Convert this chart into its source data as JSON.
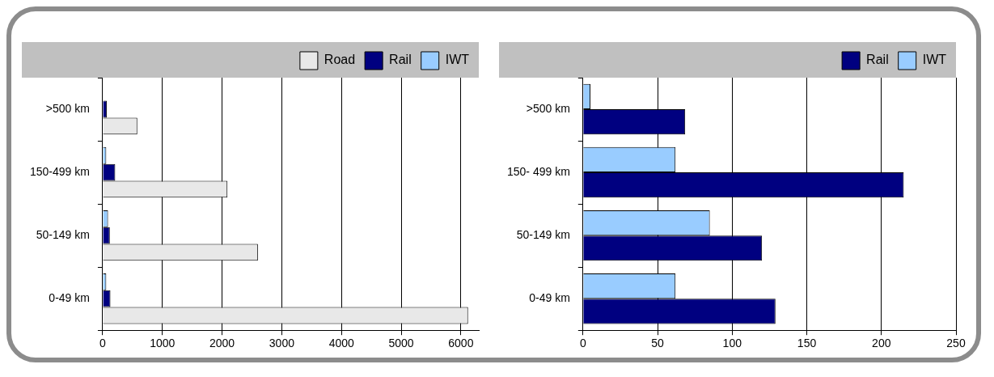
{
  "chart_data": [
    {
      "type": "bar",
      "orientation": "horizontal",
      "categories": [
        ">500 km",
        "150-499 km",
        "50-149 km",
        "0-49 km"
      ],
      "series": [
        {
          "name": "Road",
          "color": "#e8e8e8",
          "values": [
            580,
            2090,
            2600,
            6120
          ]
        },
        {
          "name": "Rail",
          "color": "#000080",
          "values": [
            70,
            210,
            120,
            130
          ]
        },
        {
          "name": "IWT",
          "color": "#99ccff",
          "values": [
            0,
            60,
            90,
            60
          ]
        }
      ],
      "xlim": [
        0,
        6300
      ],
      "xticks": [
        0,
        1000,
        2000,
        3000,
        4000,
        5000,
        6000
      ],
      "grid": "x",
      "legend": "top right"
    },
    {
      "type": "bar",
      "orientation": "horizontal",
      "categories": [
        ">500 km",
        "150- 499 km",
        "50-149 km",
        "0-49 km"
      ],
      "series": [
        {
          "name": "Rail",
          "color": "#000080",
          "values": [
            68.5,
            215,
            120,
            129
          ]
        },
        {
          "name": "IWT",
          "color": "#99ccff",
          "values": [
            5,
            62,
            85,
            62
          ]
        }
      ],
      "xlim": [
        0,
        250
      ],
      "xticks": [
        0,
        50,
        100,
        150,
        200,
        250
      ],
      "grid": "x",
      "legend": "top right"
    }
  ]
}
